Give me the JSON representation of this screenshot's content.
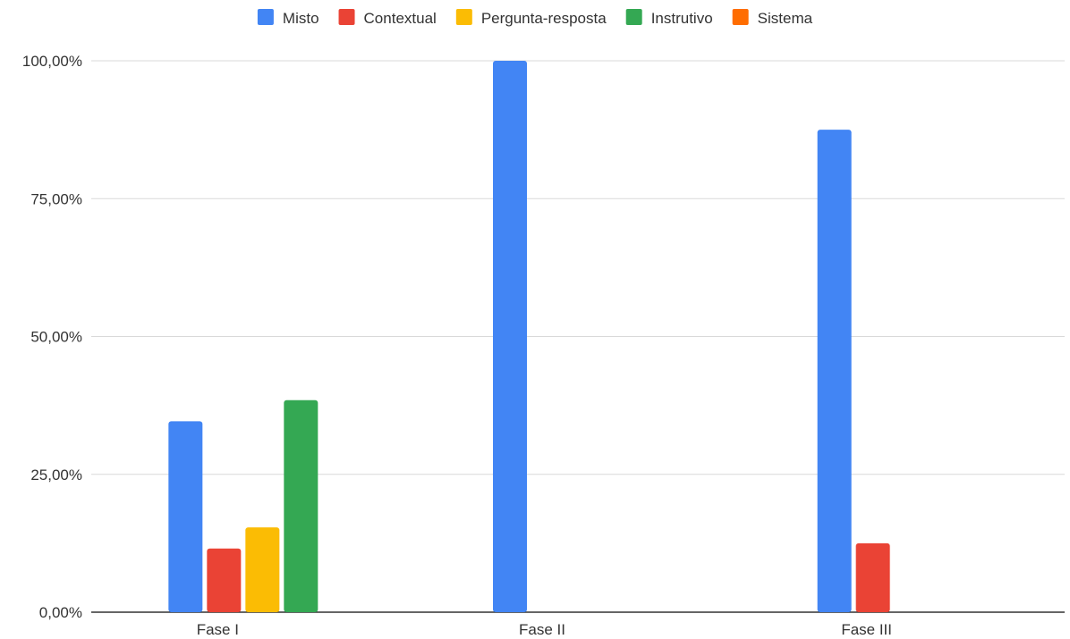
{
  "chart_data": {
    "type": "bar",
    "categories": [
      "Fase I",
      "Fase II",
      "Fase III"
    ],
    "series": [
      {
        "name": "Misto",
        "color": "#4285f4",
        "values": [
          34.62,
          100,
          87.5
        ]
      },
      {
        "name": "Contextual",
        "color": "#ea4335",
        "values": [
          11.54,
          0,
          12.5
        ]
      },
      {
        "name": "Pergunta-resposta",
        "color": "#fbbc04",
        "values": [
          15.38,
          0,
          0
        ]
      },
      {
        "name": "Instrutivo",
        "color": "#34a853",
        "values": [
          38.46,
          0,
          0
        ]
      },
      {
        "name": "Sistema",
        "color": "#ff6d01",
        "values": [
          0,
          0,
          0
        ]
      }
    ],
    "yticks": [
      "0,00%",
      "25,00%",
      "50,00%",
      "75,00%",
      "100,00%"
    ],
    "ylim": [
      0,
      100
    ],
    "legend_position": "top",
    "grid": true
  }
}
